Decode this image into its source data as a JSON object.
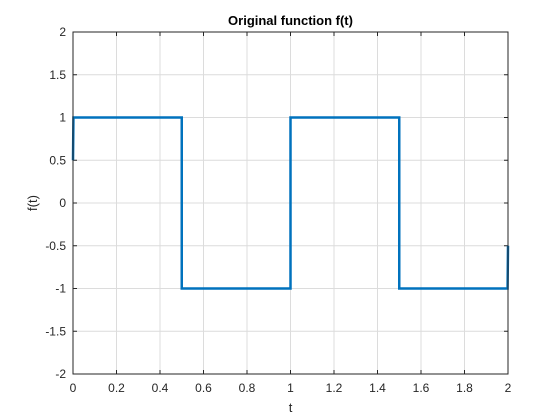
{
  "chart_data": {
    "type": "line",
    "title": "Original function f(t)",
    "xlabel": "t",
    "ylabel": "f(t)",
    "xlim": [
      0,
      2
    ],
    "ylim": [
      -2,
      2
    ],
    "grid": true,
    "x_ticks": [
      0,
      0.2,
      0.4,
      0.6,
      0.8,
      1,
      1.2,
      1.4,
      1.6,
      1.8,
      2
    ],
    "x_tick_labels": [
      "0",
      "0.2",
      "0.4",
      "0.6",
      "0.8",
      "1",
      "1.2",
      "1.4",
      "1.6",
      "1.8",
      "2"
    ],
    "y_ticks": [
      2,
      1.5,
      1,
      0.5,
      0,
      -0.5,
      -1,
      -1.5,
      -2
    ],
    "y_tick_labels": [
      "2",
      "1.5",
      "1",
      "0.5",
      "0",
      "-0.5",
      "-1",
      "-1.5",
      "-2"
    ],
    "series": [
      {
        "color": "#0072bd",
        "x": [
          0,
          0.002,
          0.5,
          0.5,
          1.0,
          1.0,
          1.5,
          1.5,
          1.998,
          2.0
        ],
        "y": [
          0.5,
          1,
          1,
          -1,
          -1,
          1,
          1,
          -1,
          -1,
          -0.5
        ]
      }
    ]
  }
}
